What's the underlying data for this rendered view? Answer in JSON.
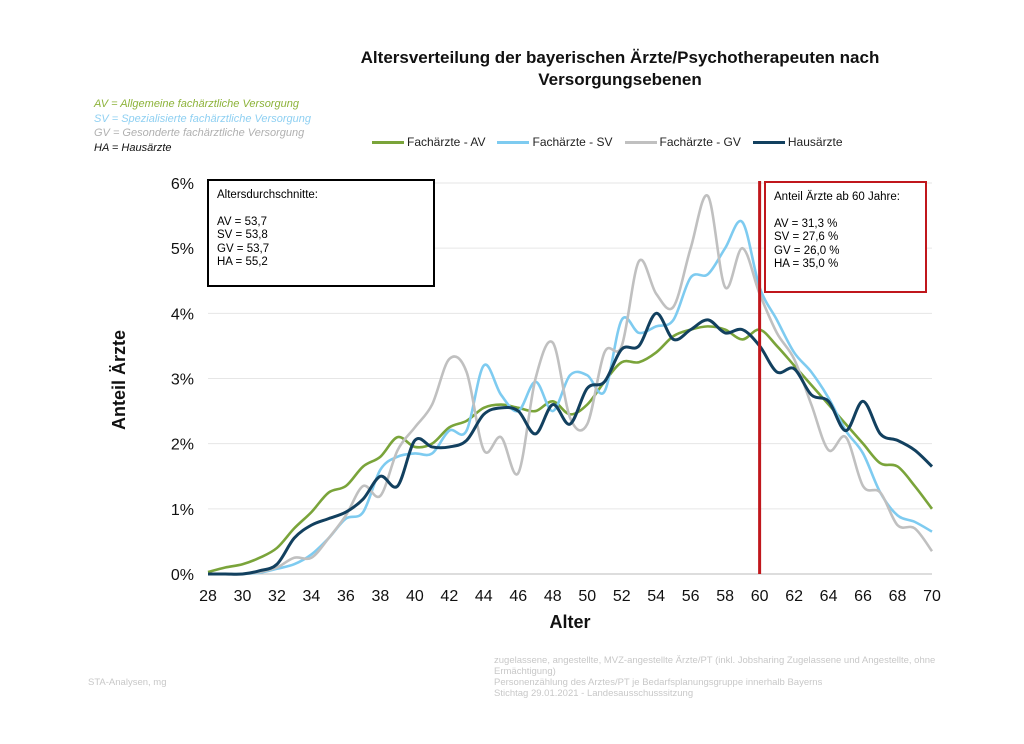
{
  "chart_data": {
    "type": "line",
    "title": "Altersverteilung der bayerischen Ärzte/Psychotherapeuten nach Versorgungsebenen",
    "title_line1": "Altersverteilung der bayerischen Ärzte/Psychotherapeuten nach",
    "title_line2": "Versorgungsebenen",
    "xlabel": "Alter",
    "ylabel": "Anteil Ärzte",
    "xlim": [
      28,
      70
    ],
    "ylim": [
      0,
      6
    ],
    "x_ticks": [
      "28",
      "30",
      "32",
      "34",
      "36",
      "38",
      "40",
      "42",
      "44",
      "46",
      "48",
      "50",
      "52",
      "54",
      "56",
      "58",
      "60",
      "62",
      "64",
      "66",
      "68",
      "70"
    ],
    "y_ticks": [
      "0%",
      "1%",
      "2%",
      "3%",
      "4%",
      "5%",
      "6%"
    ],
    "grid": true,
    "legend_placement": "top",
    "x": [
      28,
      29,
      30,
      31,
      32,
      33,
      34,
      35,
      36,
      37,
      38,
      39,
      40,
      41,
      42,
      43,
      44,
      45,
      46,
      47,
      48,
      49,
      50,
      51,
      52,
      53,
      54,
      55,
      56,
      57,
      58,
      59,
      60,
      61,
      62,
      63,
      64,
      65,
      66,
      67,
      68,
      69,
      70
    ],
    "series": [
      {
        "name": "Fachärzte - AV",
        "color": "#7aa43a",
        "values": [
          0.03,
          0.1,
          0.15,
          0.25,
          0.4,
          0.7,
          0.95,
          1.25,
          1.35,
          1.65,
          1.8,
          2.1,
          1.95,
          2.0,
          2.25,
          2.35,
          2.55,
          2.6,
          2.55,
          2.5,
          2.65,
          2.45,
          2.6,
          2.95,
          3.25,
          3.25,
          3.4,
          3.65,
          3.75,
          3.8,
          3.75,
          3.6,
          3.75,
          3.5,
          3.2,
          2.9,
          2.6,
          2.3,
          2.0,
          1.7,
          1.65,
          1.35,
          1.0
        ]
      },
      {
        "name": "Fachärzte - SV",
        "color": "#7ecbf0",
        "values": [
          0,
          0,
          0,
          0.02,
          0.08,
          0.15,
          0.3,
          0.55,
          0.85,
          0.95,
          1.6,
          1.8,
          1.85,
          1.85,
          2.2,
          2.2,
          3.2,
          2.75,
          2.5,
          2.95,
          2.5,
          3.05,
          3.05,
          2.8,
          3.9,
          3.7,
          3.8,
          3.9,
          4.55,
          4.6,
          5.0,
          5.4,
          4.4,
          3.9,
          3.4,
          3.1,
          2.7,
          2.2,
          1.85,
          1.25,
          0.9,
          0.8,
          0.65
        ]
      },
      {
        "name": "Fachärzte - GV",
        "color": "#c0c0c0",
        "values": [
          0,
          0,
          0,
          0.03,
          0.1,
          0.25,
          0.25,
          0.55,
          0.9,
          1.35,
          1.2,
          1.9,
          2.25,
          2.6,
          3.3,
          3.1,
          1.9,
          2.1,
          1.55,
          3.0,
          3.55,
          2.4,
          2.3,
          3.4,
          3.5,
          4.8,
          4.3,
          4.1,
          5.0,
          5.8,
          4.4,
          5.0,
          4.3,
          3.7,
          3.3,
          2.6,
          1.9,
          2.1,
          1.35,
          1.25,
          0.75,
          0.7,
          0.35
        ]
      },
      {
        "name": "Hausärzte",
        "color": "#12405f",
        "values": [
          0,
          0,
          0,
          0.05,
          0.15,
          0.55,
          0.75,
          0.85,
          0.95,
          1.15,
          1.5,
          1.35,
          2.05,
          1.95,
          1.95,
          2.05,
          2.45,
          2.55,
          2.5,
          2.15,
          2.6,
          2.3,
          2.85,
          2.95,
          3.45,
          3.5,
          4.0,
          3.6,
          3.75,
          3.9,
          3.7,
          3.75,
          3.5,
          3.1,
          3.15,
          2.75,
          2.65,
          2.2,
          2.65,
          2.15,
          2.05,
          1.9,
          1.65
        ]
      }
    ],
    "reference_line": {
      "x": 60,
      "color": "#c0171c"
    }
  },
  "definitions": [
    {
      "text": "AV = Allgemeine fachärztliche Versorgung",
      "color": "#8db33a"
    },
    {
      "text": "SV = Spezialisierte fachärztliche Versorgung",
      "color": "#8fd0f2"
    },
    {
      "text": "GV = Gesonderte fachärztliche Versorgung",
      "color": "#b0b0b0"
    },
    {
      "text": "HA = Hausärzte",
      "color": "#111111"
    }
  ],
  "box_avg": {
    "heading": "Altersdurchschnitte:",
    "lines": [
      "AV = 53,7",
      "SV = 53,8",
      "GV = 53,7",
      "HA = 55,2"
    ]
  },
  "box_60": {
    "heading": "Anteil Ärzte ab 60 Jahre:",
    "lines": [
      "AV = 31,3 %",
      "SV = 27,6 %",
      "GV = 26,0 %",
      "HA = 35,0 %"
    ]
  },
  "footer": {
    "left": "STA-Analysen,  mg",
    "right": [
      "zugelassene, angestellte, MVZ-angestellte  Ärzte/PT (inkl. Jobsharing Zugelassene und Angestellte, ohne Ermächtigung)",
      "Personenzählung des Arztes/PT je Bedarfsplanungsgruppe innerhalb Bayerns",
      "Stichtag 29.01.2021 - Landesausschusssitzung"
    ]
  }
}
